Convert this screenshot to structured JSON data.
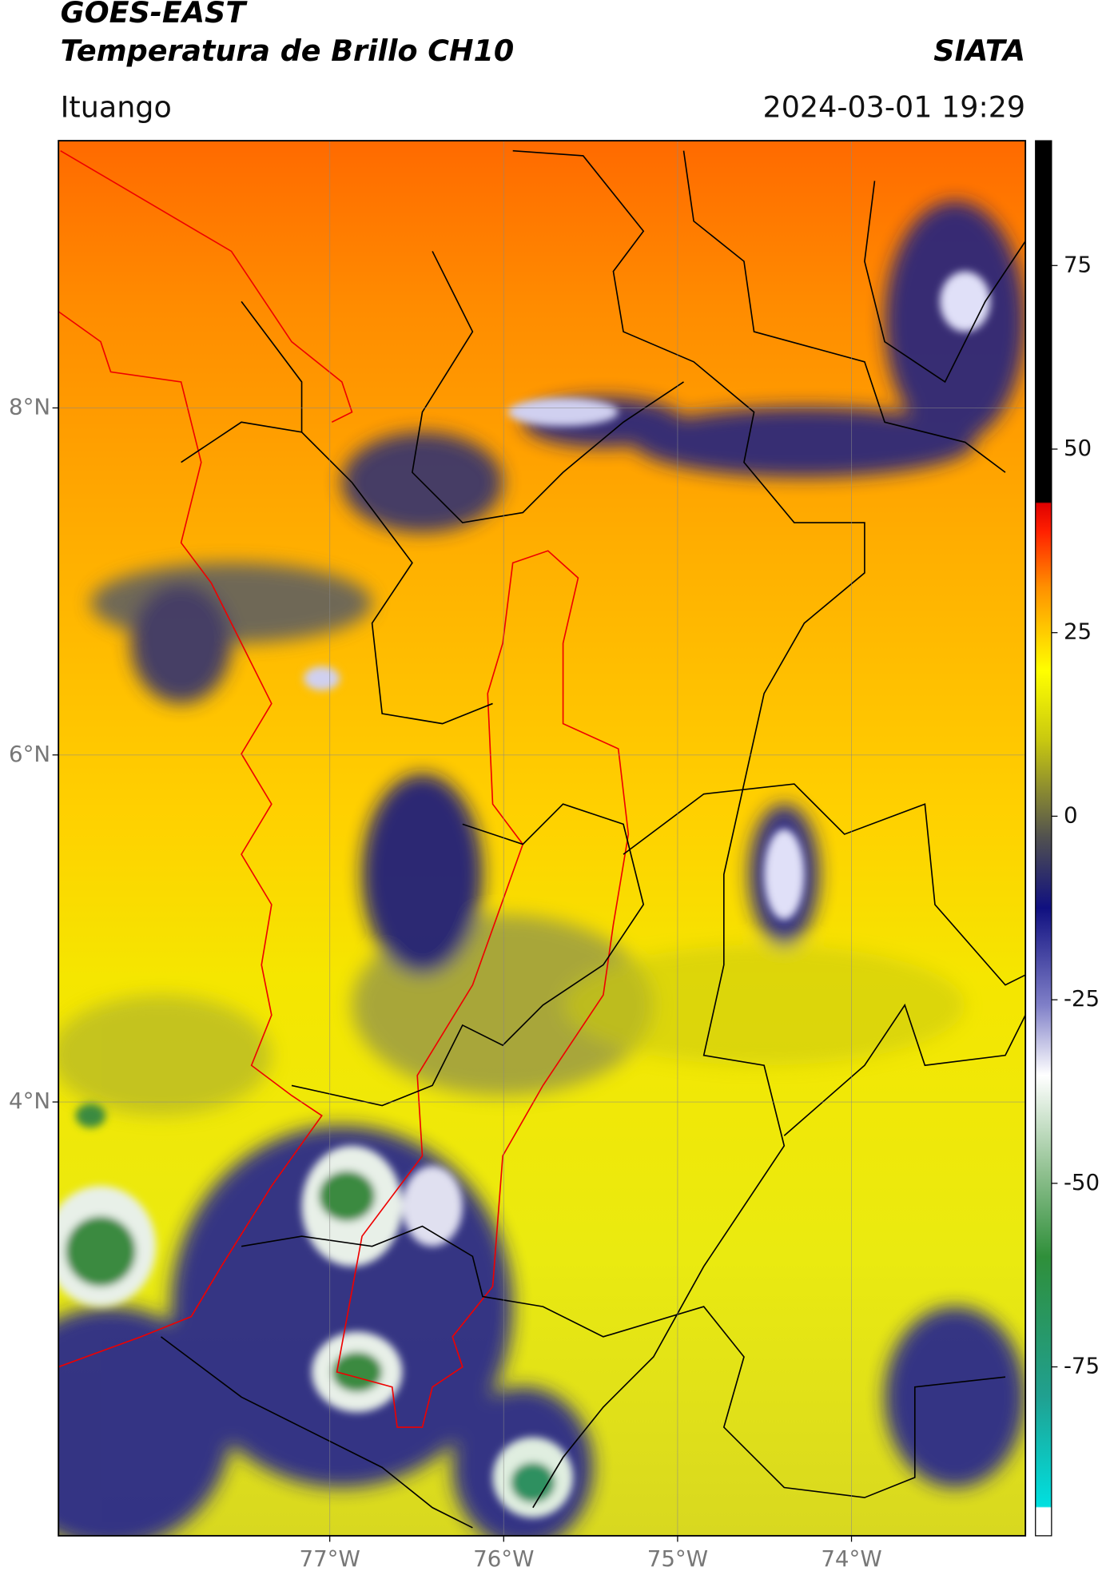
{
  "header": {
    "title": "GOES-EAST",
    "subtitle": "Temperatura de Brillo CH10",
    "source": "SIATA",
    "location": "Ituango",
    "datetime": "2024-03-01 19:29"
  },
  "map": {
    "lon_range": [
      -78.56,
      -73.0
    ],
    "lat_range": [
      1.5,
      9.54
    ],
    "lon_ticks": [
      {
        "value": -77,
        "label": "77°W"
      },
      {
        "value": -76,
        "label": "76°W"
      },
      {
        "value": -75,
        "label": "75°W"
      },
      {
        "value": -74,
        "label": "74°W"
      }
    ],
    "lat_ticks": [
      {
        "value": 8,
        "label": "8°N"
      },
      {
        "value": 6,
        "label": "6°N"
      },
      {
        "value": 4,
        "label": "4°N"
      }
    ],
    "grid": true
  },
  "colorbar": {
    "range": [
      -98,
      92
    ],
    "ticks": [
      75,
      50,
      25,
      0,
      -25,
      -50,
      -75
    ]
  }
}
